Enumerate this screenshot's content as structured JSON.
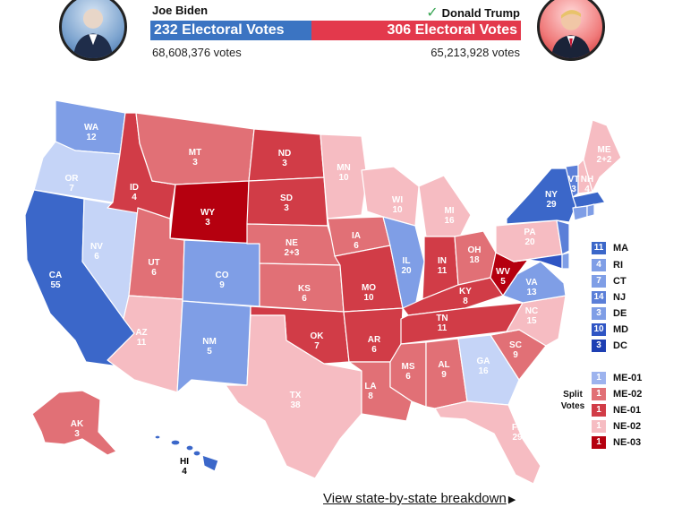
{
  "header": {
    "biden": {
      "name": "Joe Biden",
      "ev_label": "232 Electoral Votes",
      "popular": "68,608,376 votes",
      "color": "#3b74c2"
    },
    "trump": {
      "name": "Donald Trump",
      "ev_label": "306 Electoral Votes",
      "popular": "65,213,928 votes",
      "color": "#e3394c",
      "winner_icon": "checkmark-icon"
    }
  },
  "colors": {
    "d_safe": "#3b67c9",
    "d_likely": "#7f9ee6",
    "d_lean": "#c5d4f7",
    "r_lean": "#f6bcc2",
    "r_likely": "#e17076",
    "r_solid": "#d13c47",
    "r_safe": "#b5000f"
  },
  "states": [
    {
      "abbr": "WA",
      "ev": "12"
    },
    {
      "abbr": "OR",
      "ev": "7"
    },
    {
      "abbr": "CA",
      "ev": "55"
    },
    {
      "abbr": "NV",
      "ev": "6"
    },
    {
      "abbr": "ID",
      "ev": "4"
    },
    {
      "abbr": "MT",
      "ev": "3"
    },
    {
      "abbr": "WY",
      "ev": "3"
    },
    {
      "abbr": "UT",
      "ev": "6"
    },
    {
      "abbr": "CO",
      "ev": "9"
    },
    {
      "abbr": "AZ",
      "ev": "11"
    },
    {
      "abbr": "NM",
      "ev": "5"
    },
    {
      "abbr": "ND",
      "ev": "3"
    },
    {
      "abbr": "SD",
      "ev": "3"
    },
    {
      "abbr": "NE",
      "ev": "2+3"
    },
    {
      "abbr": "KS",
      "ev": "6"
    },
    {
      "abbr": "OK",
      "ev": "7"
    },
    {
      "abbr": "TX",
      "ev": "38"
    },
    {
      "abbr": "MN",
      "ev": "10"
    },
    {
      "abbr": "IA",
      "ev": "6"
    },
    {
      "abbr": "MO",
      "ev": "10"
    },
    {
      "abbr": "AR",
      "ev": "6"
    },
    {
      "abbr": "LA",
      "ev": "8"
    },
    {
      "abbr": "WI",
      "ev": "10"
    },
    {
      "abbr": "IL",
      "ev": "20"
    },
    {
      "abbr": "MI",
      "ev": "16"
    },
    {
      "abbr": "IN",
      "ev": "11"
    },
    {
      "abbr": "OH",
      "ev": "18"
    },
    {
      "abbr": "KY",
      "ev": "8"
    },
    {
      "abbr": "TN",
      "ev": "11"
    },
    {
      "abbr": "MS",
      "ev": "6"
    },
    {
      "abbr": "AL",
      "ev": "9"
    },
    {
      "abbr": "GA",
      "ev": "16"
    },
    {
      "abbr": "FL",
      "ev": "29"
    },
    {
      "abbr": "SC",
      "ev": "9"
    },
    {
      "abbr": "NC",
      "ev": "15"
    },
    {
      "abbr": "VA",
      "ev": "13"
    },
    {
      "abbr": "WV",
      "ev": "5"
    },
    {
      "abbr": "PA",
      "ev": "20"
    },
    {
      "abbr": "NY",
      "ev": "29"
    },
    {
      "abbr": "VT",
      "ev": "3"
    },
    {
      "abbr": "NH",
      "ev": "4"
    },
    {
      "abbr": "ME",
      "ev": "2+2"
    },
    {
      "abbr": "AK",
      "ev": "3"
    },
    {
      "abbr": "HI",
      "ev": "4"
    }
  ],
  "small_states": [
    {
      "ev": "11",
      "abbr": "MA",
      "color": "#3b67c9"
    },
    {
      "ev": "4",
      "abbr": "RI",
      "color": "#7f9ee6"
    },
    {
      "ev": "7",
      "abbr": "CT",
      "color": "#7f9ee6"
    },
    {
      "ev": "14",
      "abbr": "NJ",
      "color": "#5b7fd8"
    },
    {
      "ev": "3",
      "abbr": "DE",
      "color": "#7f9ee6"
    },
    {
      "ev": "10",
      "abbr": "MD",
      "color": "#2f55c4"
    },
    {
      "ev": "3",
      "abbr": "DC",
      "color": "#1e3fb3"
    }
  ],
  "split_votes_label": "Split Votes",
  "split_votes": [
    {
      "ev": "1",
      "abbr": "ME-01",
      "color": "#9db3ee"
    },
    {
      "ev": "1",
      "abbr": "ME-02",
      "color": "#e17076"
    },
    {
      "ev": "1",
      "abbr": "NE-01",
      "color": "#d13c47"
    },
    {
      "ev": "1",
      "abbr": "NE-02",
      "color": "#f6bcc2"
    },
    {
      "ev": "1",
      "abbr": "NE-03",
      "color": "#b5000f"
    }
  ],
  "breakdown_link": "View state-by-state breakdown"
}
